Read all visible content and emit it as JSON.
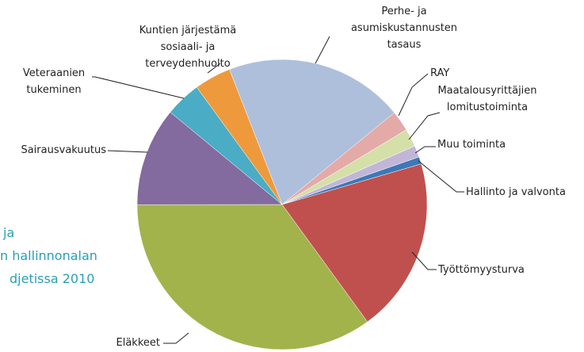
{
  "chart_data": {
    "type": "pie",
    "categories": [
      "Perhe- ja\nasumiskustannusten\ntasaus",
      "RAY",
      "Maatalousyrittäjien\nlomitustoiminta",
      "Muu toiminta",
      "Hallinto ja valvonta",
      "Työttömyysturva",
      "Eläkkeet",
      "Sairausvakuutus",
      "Veteraanien\ntukeminen",
      "Kuntien järjestämä\nsosiaali- ja\nterveydenhuolto"
    ],
    "values": [
      20,
      2.3,
      2,
      1.3,
      0.8,
      19.5,
      35,
      11,
      4,
      4.1
    ],
    "colors": [
      "#aebfdc",
      "#e3aaa8",
      "#d4e0a8",
      "#c2b6d8",
      "#3d78b8",
      "#c0504d",
      "#a2b34c",
      "#836a9f",
      "#4aacc5",
      "#ee9a3c"
    ],
    "side_text": [
      "ja",
      "n hallinnonalan",
      "djetissa 2010"
    ]
  }
}
